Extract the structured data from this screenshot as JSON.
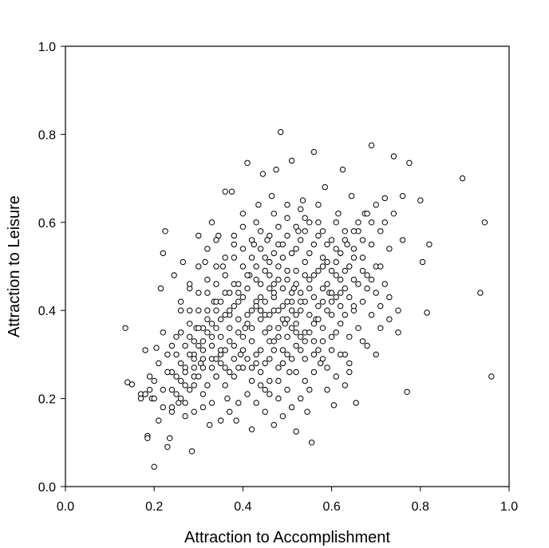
{
  "chart_data": {
    "type": "scatter",
    "title": "",
    "xlabel": "Attraction to Accomplishment",
    "ylabel": "Attraction to Leisure",
    "xlim": [
      0.0,
      1.0
    ],
    "ylim": [
      0.0,
      1.0
    ],
    "x_ticks": [
      "0.0",
      "0.2",
      "0.4",
      "0.6",
      "0.8",
      "1.0"
    ],
    "y_ticks": [
      "0.0",
      "0.2",
      "0.4",
      "0.6",
      "0.8",
      "1.0"
    ],
    "grid": false,
    "legend": "none",
    "marker_fill": "#ffffff",
    "marker_edge": "#000000",
    "points": [
      [
        0.135,
        0.36
      ],
      [
        0.14,
        0.237
      ],
      [
        0.15,
        0.232
      ],
      [
        0.17,
        0.21
      ],
      [
        0.18,
        0.31
      ],
      [
        0.185,
        0.115
      ],
      [
        0.185,
        0.11
      ],
      [
        0.19,
        0.25
      ],
      [
        0.195,
        0.2
      ],
      [
        0.2,
        0.045
      ],
      [
        0.205,
        0.315
      ],
      [
        0.21,
        0.15
      ],
      [
        0.215,
        0.45
      ],
      [
        0.22,
        0.53
      ],
      [
        0.225,
        0.58
      ],
      [
        0.23,
        0.09
      ],
      [
        0.235,
        0.11
      ],
      [
        0.24,
        0.17
      ],
      [
        0.245,
        0.48
      ],
      [
        0.25,
        0.3
      ],
      [
        0.255,
        0.19
      ],
      [
        0.26,
        0.4
      ],
      [
        0.265,
        0.51
      ],
      [
        0.27,
        0.16
      ],
      [
        0.28,
        0.45
      ],
      [
        0.285,
        0.08
      ],
      [
        0.29,
        0.23
      ],
      [
        0.295,
        0.36
      ],
      [
        0.3,
        0.57
      ],
      [
        0.305,
        0.28
      ],
      [
        0.31,
        0.18
      ],
      [
        0.315,
        0.51
      ],
      [
        0.32,
        0.35
      ],
      [
        0.325,
        0.14
      ],
      [
        0.33,
        0.6
      ],
      [
        0.335,
        0.42
      ],
      [
        0.34,
        0.25
      ],
      [
        0.345,
        0.57
      ],
      [
        0.35,
        0.3
      ],
      [
        0.355,
        0.5
      ],
      [
        0.36,
        0.67
      ],
      [
        0.365,
        0.2
      ],
      [
        0.37,
        0.39
      ],
      [
        0.375,
        0.67
      ],
      [
        0.38,
        0.55
      ],
      [
        0.385,
        0.15
      ],
      [
        0.39,
        0.44
      ],
      [
        0.395,
        0.3
      ],
      [
        0.4,
        0.62
      ],
      [
        0.405,
        0.36
      ],
      [
        0.41,
        0.735
      ],
      [
        0.415,
        0.48
      ],
      [
        0.42,
        0.13
      ],
      [
        0.425,
        0.55
      ],
      [
        0.43,
        0.28
      ],
      [
        0.435,
        0.64
      ],
      [
        0.44,
        0.4
      ],
      [
        0.445,
        0.71
      ],
      [
        0.45,
        0.22
      ],
      [
        0.455,
        0.56
      ],
      [
        0.46,
        0.33
      ],
      [
        0.465,
        0.66
      ],
      [
        0.47,
        0.46
      ],
      [
        0.475,
        0.72
      ],
      [
        0.48,
        0.2
      ],
      [
        0.485,
        0.805
      ],
      [
        0.49,
        0.52
      ],
      [
        0.495,
        0.37
      ],
      [
        0.5,
        0.61
      ],
      [
        0.505,
        0.26
      ],
      [
        0.51,
        0.74
      ],
      [
        0.515,
        0.45
      ],
      [
        0.52,
        0.125
      ],
      [
        0.525,
        0.58
      ],
      [
        0.53,
        0.34
      ],
      [
        0.535,
        0.65
      ],
      [
        0.54,
        0.42
      ],
      [
        0.545,
        0.17
      ],
      [
        0.55,
        0.53
      ],
      [
        0.555,
        0.1
      ],
      [
        0.56,
        0.76
      ],
      [
        0.565,
        0.38
      ],
      [
        0.57,
        0.6
      ],
      [
        0.575,
        0.28
      ],
      [
        0.58,
        0.5
      ],
      [
        0.585,
        0.68
      ],
      [
        0.59,
        0.22
      ],
      [
        0.595,
        0.44
      ],
      [
        0.6,
        0.56
      ],
      [
        0.605,
        0.185
      ],
      [
        0.61,
        0.35
      ],
      [
        0.615,
        0.62
      ],
      [
        0.62,
        0.47
      ],
      [
        0.625,
        0.72
      ],
      [
        0.63,
        0.3
      ],
      [
        0.635,
        0.55
      ],
      [
        0.64,
        0.26
      ],
      [
        0.645,
        0.66
      ],
      [
        0.65,
        0.4
      ],
      [
        0.655,
        0.19
      ],
      [
        0.66,
        0.58
      ],
      [
        0.67,
        0.33
      ],
      [
        0.675,
        0.62
      ],
      [
        0.68,
        0.45
      ],
      [
        0.69,
        0.775
      ],
      [
        0.7,
        0.5
      ],
      [
        0.71,
        0.36
      ],
      [
        0.72,
        0.655
      ],
      [
        0.73,
        0.43
      ],
      [
        0.74,
        0.75
      ],
      [
        0.75,
        0.35
      ],
      [
        0.76,
        0.56
      ],
      [
        0.77,
        0.215
      ],
      [
        0.775,
        0.735
      ],
      [
        0.8,
        0.65
      ],
      [
        0.805,
        0.51
      ],
      [
        0.815,
        0.395
      ],
      [
        0.82,
        0.55
      ],
      [
        0.895,
        0.7
      ],
      [
        0.935,
        0.44
      ],
      [
        0.945,
        0.6
      ],
      [
        0.96,
        0.25
      ],
      [
        0.43,
        0.42
      ],
      [
        0.45,
        0.39
      ],
      [
        0.47,
        0.43
      ],
      [
        0.49,
        0.41
      ],
      [
        0.51,
        0.44
      ],
      [
        0.53,
        0.4
      ],
      [
        0.55,
        0.45
      ],
      [
        0.57,
        0.41
      ],
      [
        0.41,
        0.37
      ],
      [
        0.39,
        0.35
      ],
      [
        0.37,
        0.33
      ],
      [
        0.35,
        0.31
      ],
      [
        0.33,
        0.29
      ],
      [
        0.31,
        0.27
      ],
      [
        0.29,
        0.25
      ],
      [
        0.27,
        0.23
      ],
      [
        0.44,
        0.46
      ],
      [
        0.46,
        0.48
      ],
      [
        0.48,
        0.5
      ],
      [
        0.5,
        0.47
      ],
      [
        0.52,
        0.49
      ],
      [
        0.54,
        0.51
      ],
      [
        0.56,
        0.48
      ],
      [
        0.58,
        0.52
      ],
      [
        0.6,
        0.49
      ],
      [
        0.62,
        0.53
      ],
      [
        0.64,
        0.5
      ],
      [
        0.42,
        0.33
      ],
      [
        0.44,
        0.31
      ],
      [
        0.46,
        0.29
      ],
      [
        0.48,
        0.27
      ],
      [
        0.5,
        0.3
      ],
      [
        0.52,
        0.32
      ],
      [
        0.54,
        0.29
      ],
      [
        0.56,
        0.33
      ],
      [
        0.58,
        0.36
      ],
      [
        0.6,
        0.39
      ],
      [
        0.38,
        0.46
      ],
      [
        0.36,
        0.44
      ],
      [
        0.34,
        0.42
      ],
      [
        0.32,
        0.4
      ],
      [
        0.4,
        0.5
      ],
      [
        0.42,
        0.52
      ],
      [
        0.44,
        0.54
      ],
      [
        0.46,
        0.51
      ],
      [
        0.48,
        0.55
      ],
      [
        0.5,
        0.57
      ],
      [
        0.52,
        0.54
      ],
      [
        0.54,
        0.58
      ],
      [
        0.4,
        0.27
      ],
      [
        0.38,
        0.25
      ],
      [
        0.36,
        0.23
      ],
      [
        0.42,
        0.24
      ],
      [
        0.44,
        0.26
      ],
      [
        0.46,
        0.24
      ],
      [
        0.48,
        0.36
      ],
      [
        0.5,
        0.34
      ],
      [
        0.52,
        0.37
      ],
      [
        0.54,
        0.35
      ],
      [
        0.56,
        0.37
      ],
      [
        0.58,
        0.42
      ],
      [
        0.6,
        0.44
      ],
      [
        0.62,
        0.41
      ],
      [
        0.64,
        0.43
      ],
      [
        0.66,
        0.46
      ],
      [
        0.68,
        0.48
      ],
      [
        0.7,
        0.44
      ],
      [
        0.72,
        0.46
      ],
      [
        0.34,
        0.36
      ],
      [
        0.3,
        0.32
      ],
      [
        0.28,
        0.34
      ],
      [
        0.26,
        0.28
      ],
      [
        0.24,
        0.26
      ],
      [
        0.22,
        0.22
      ],
      [
        0.2,
        0.24
      ],
      [
        0.32,
        0.47
      ],
      [
        0.3,
        0.44
      ],
      [
        0.28,
        0.4
      ],
      [
        0.36,
        0.52
      ],
      [
        0.34,
        0.5
      ],
      [
        0.38,
        0.57
      ],
      [
        0.4,
        0.59
      ],
      [
        0.43,
        0.6
      ],
      [
        0.47,
        0.62
      ],
      [
        0.53,
        0.63
      ],
      [
        0.57,
        0.64
      ],
      [
        0.61,
        0.6
      ],
      [
        0.63,
        0.58
      ],
      [
        0.65,
        0.54
      ],
      [
        0.67,
        0.52
      ],
      [
        0.69,
        0.55
      ],
      [
        0.71,
        0.58
      ],
      [
        0.45,
        0.35
      ],
      [
        0.47,
        0.33
      ],
      [
        0.49,
        0.31
      ],
      [
        0.51,
        0.36
      ],
      [
        0.53,
        0.42
      ],
      [
        0.55,
        0.39
      ],
      [
        0.57,
        0.31
      ],
      [
        0.59,
        0.27
      ],
      [
        0.61,
        0.25
      ],
      [
        0.63,
        0.23
      ],
      [
        0.41,
        0.45
      ],
      [
        0.43,
        0.47
      ],
      [
        0.45,
        0.49
      ],
      [
        0.47,
        0.4
      ],
      [
        0.49,
        0.38
      ],
      [
        0.51,
        0.4
      ],
      [
        0.37,
        0.4
      ],
      [
        0.39,
        0.42
      ],
      [
        0.35,
        0.38
      ],
      [
        0.33,
        0.34
      ],
      [
        0.31,
        0.36
      ],
      [
        0.29,
        0.3
      ],
      [
        0.27,
        0.32
      ],
      [
        0.25,
        0.34
      ],
      [
        0.23,
        0.3
      ],
      [
        0.21,
        0.28
      ],
      [
        0.19,
        0.22
      ],
      [
        0.17,
        0.2
      ],
      [
        0.55,
        0.22
      ],
      [
        0.53,
        0.2
      ],
      [
        0.51,
        0.18
      ],
      [
        0.49,
        0.16
      ],
      [
        0.47,
        0.14
      ],
      [
        0.45,
        0.17
      ],
      [
        0.43,
        0.19
      ],
      [
        0.41,
        0.21
      ],
      [
        0.39,
        0.19
      ],
      [
        0.37,
        0.17
      ],
      [
        0.35,
        0.15
      ],
      [
        0.33,
        0.19
      ],
      [
        0.31,
        0.21
      ],
      [
        0.29,
        0.17
      ],
      [
        0.27,
        0.19
      ],
      [
        0.25,
        0.21
      ],
      [
        0.59,
        0.46
      ],
      [
        0.61,
        0.48
      ],
      [
        0.63,
        0.45
      ],
      [
        0.65,
        0.47
      ],
      [
        0.67,
        0.42
      ],
      [
        0.69,
        0.39
      ],
      [
        0.71,
        0.41
      ],
      [
        0.73,
        0.38
      ],
      [
        0.75,
        0.4
      ],
      [
        0.62,
        0.37
      ],
      [
        0.64,
        0.34
      ],
      [
        0.66,
        0.36
      ],
      [
        0.68,
        0.32
      ],
      [
        0.7,
        0.3
      ],
      [
        0.66,
        0.6
      ],
      [
        0.68,
        0.62
      ],
      [
        0.7,
        0.64
      ],
      [
        0.72,
        0.6
      ],
      [
        0.74,
        0.62
      ],
      [
        0.76,
        0.66
      ],
      [
        0.58,
        0.58
      ],
      [
        0.56,
        0.55
      ],
      [
        0.54,
        0.61
      ],
      [
        0.52,
        0.59
      ],
      [
        0.5,
        0.64
      ],
      [
        0.48,
        0.59
      ],
      [
        0.46,
        0.57
      ],
      [
        0.44,
        0.58
      ],
      [
        0.42,
        0.56
      ],
      [
        0.4,
        0.54
      ],
      [
        0.38,
        0.52
      ],
      [
        0.36,
        0.48
      ],
      [
        0.34,
        0.46
      ],
      [
        0.32,
        0.44
      ],
      [
        0.3,
        0.4
      ],
      [
        0.28,
        0.37
      ],
      [
        0.26,
        0.35
      ],
      [
        0.24,
        0.32
      ],
      [
        0.22,
        0.35
      ],
      [
        0.26,
        0.42
      ],
      [
        0.28,
        0.46
      ],
      [
        0.3,
        0.5
      ],
      [
        0.32,
        0.54
      ],
      [
        0.34,
        0.56
      ],
      [
        0.44,
        0.43
      ],
      [
        0.46,
        0.45
      ],
      [
        0.48,
        0.47
      ],
      [
        0.5,
        0.49
      ],
      [
        0.52,
        0.46
      ],
      [
        0.54,
        0.48
      ],
      [
        0.56,
        0.43
      ],
      [
        0.58,
        0.45
      ],
      [
        0.6,
        0.42
      ],
      [
        0.62,
        0.44
      ],
      [
        0.42,
        0.4
      ],
      [
        0.44,
        0.38
      ],
      [
        0.46,
        0.36
      ],
      [
        0.48,
        0.34
      ],
      [
        0.5,
        0.38
      ],
      [
        0.52,
        0.35
      ],
      [
        0.54,
        0.33
      ],
      [
        0.56,
        0.3
      ],
      [
        0.58,
        0.33
      ],
      [
        0.6,
        0.31
      ],
      [
        0.4,
        0.43
      ],
      [
        0.38,
        0.41
      ],
      [
        0.36,
        0.39
      ],
      [
        0.34,
        0.4
      ],
      [
        0.32,
        0.38
      ],
      [
        0.3,
        0.36
      ],
      [
        0.28,
        0.3
      ],
      [
        0.26,
        0.24
      ],
      [
        0.24,
        0.22
      ],
      [
        0.22,
        0.18
      ],
      [
        0.2,
        0.2
      ],
      [
        0.18,
        0.21
      ],
      [
        0.23,
        0.26
      ],
      [
        0.25,
        0.25
      ],
      [
        0.27,
        0.27
      ],
      [
        0.29,
        0.29
      ],
      [
        0.31,
        0.31
      ],
      [
        0.33,
        0.32
      ],
      [
        0.35,
        0.34
      ],
      [
        0.37,
        0.36
      ],
      [
        0.39,
        0.38
      ],
      [
        0.41,
        0.39
      ],
      [
        0.43,
        0.41
      ],
      [
        0.45,
        0.42
      ],
      [
        0.47,
        0.44
      ],
      [
        0.49,
        0.45
      ],
      [
        0.51,
        0.42
      ],
      [
        0.53,
        0.44
      ],
      [
        0.55,
        0.47
      ],
      [
        0.57,
        0.49
      ],
      [
        0.59,
        0.51
      ],
      [
        0.61,
        0.54
      ],
      [
        0.63,
        0.56
      ],
      [
        0.65,
        0.58
      ],
      [
        0.67,
        0.56
      ],
      [
        0.69,
        0.6
      ],
      [
        0.64,
        0.28
      ],
      [
        0.62,
        0.3
      ],
      [
        0.6,
        0.34
      ],
      [
        0.58,
        0.29
      ],
      [
        0.56,
        0.26
      ],
      [
        0.54,
        0.24
      ],
      [
        0.52,
        0.26
      ],
      [
        0.5,
        0.22
      ],
      [
        0.48,
        0.24
      ],
      [
        0.46,
        0.21
      ],
      [
        0.44,
        0.23
      ],
      [
        0.42,
        0.27
      ],
      [
        0.4,
        0.31
      ],
      [
        0.38,
        0.29
      ],
      [
        0.36,
        0.27
      ],
      [
        0.34,
        0.25
      ],
      [
        0.32,
        0.23
      ],
      [
        0.3,
        0.25
      ],
      [
        0.28,
        0.22
      ],
      [
        0.26,
        0.2
      ],
      [
        0.24,
        0.18
      ],
      [
        0.73,
        0.54
      ],
      [
        0.71,
        0.5
      ],
      [
        0.69,
        0.47
      ],
      [
        0.67,
        0.49
      ],
      [
        0.65,
        0.52
      ],
      [
        0.63,
        0.49
      ],
      [
        0.61,
        0.51
      ],
      [
        0.59,
        0.55
      ],
      [
        0.57,
        0.57
      ],
      [
        0.55,
        0.6
      ],
      [
        0.53,
        0.56
      ],
      [
        0.51,
        0.53
      ],
      [
        0.49,
        0.55
      ],
      [
        0.47,
        0.53
      ],
      [
        0.45,
        0.52
      ],
      [
        0.43,
        0.5
      ],
      [
        0.41,
        0.48
      ],
      [
        0.39,
        0.46
      ],
      [
        0.37,
        0.44
      ],
      [
        0.35,
        0.42
      ],
      [
        0.33,
        0.37
      ],
      [
        0.31,
        0.33
      ],
      [
        0.29,
        0.33
      ],
      [
        0.5,
        0.42
      ],
      [
        0.52,
        0.39
      ],
      [
        0.48,
        0.4
      ],
      [
        0.46,
        0.39
      ],
      [
        0.44,
        0.4
      ],
      [
        0.42,
        0.36
      ],
      [
        0.4,
        0.34
      ],
      [
        0.38,
        0.32
      ],
      [
        0.36,
        0.31
      ],
      [
        0.34,
        0.29
      ],
      [
        0.57,
        0.38
      ],
      [
        0.59,
        0.4
      ],
      [
        0.61,
        0.43
      ],
      [
        0.63,
        0.39
      ],
      [
        0.65,
        0.41
      ],
      [
        0.55,
        0.35
      ],
      [
        0.53,
        0.31
      ],
      [
        0.51,
        0.29
      ],
      [
        0.49,
        0.28
      ],
      [
        0.47,
        0.31
      ],
      [
        0.45,
        0.28
      ],
      [
        0.43,
        0.3
      ],
      [
        0.41,
        0.29
      ],
      [
        0.39,
        0.27
      ],
      [
        0.37,
        0.26
      ],
      [
        0.35,
        0.28
      ],
      [
        0.33,
        0.27
      ],
      [
        0.31,
        0.29
      ],
      [
        0.29,
        0.27
      ],
      [
        0.27,
        0.26
      ]
    ]
  }
}
